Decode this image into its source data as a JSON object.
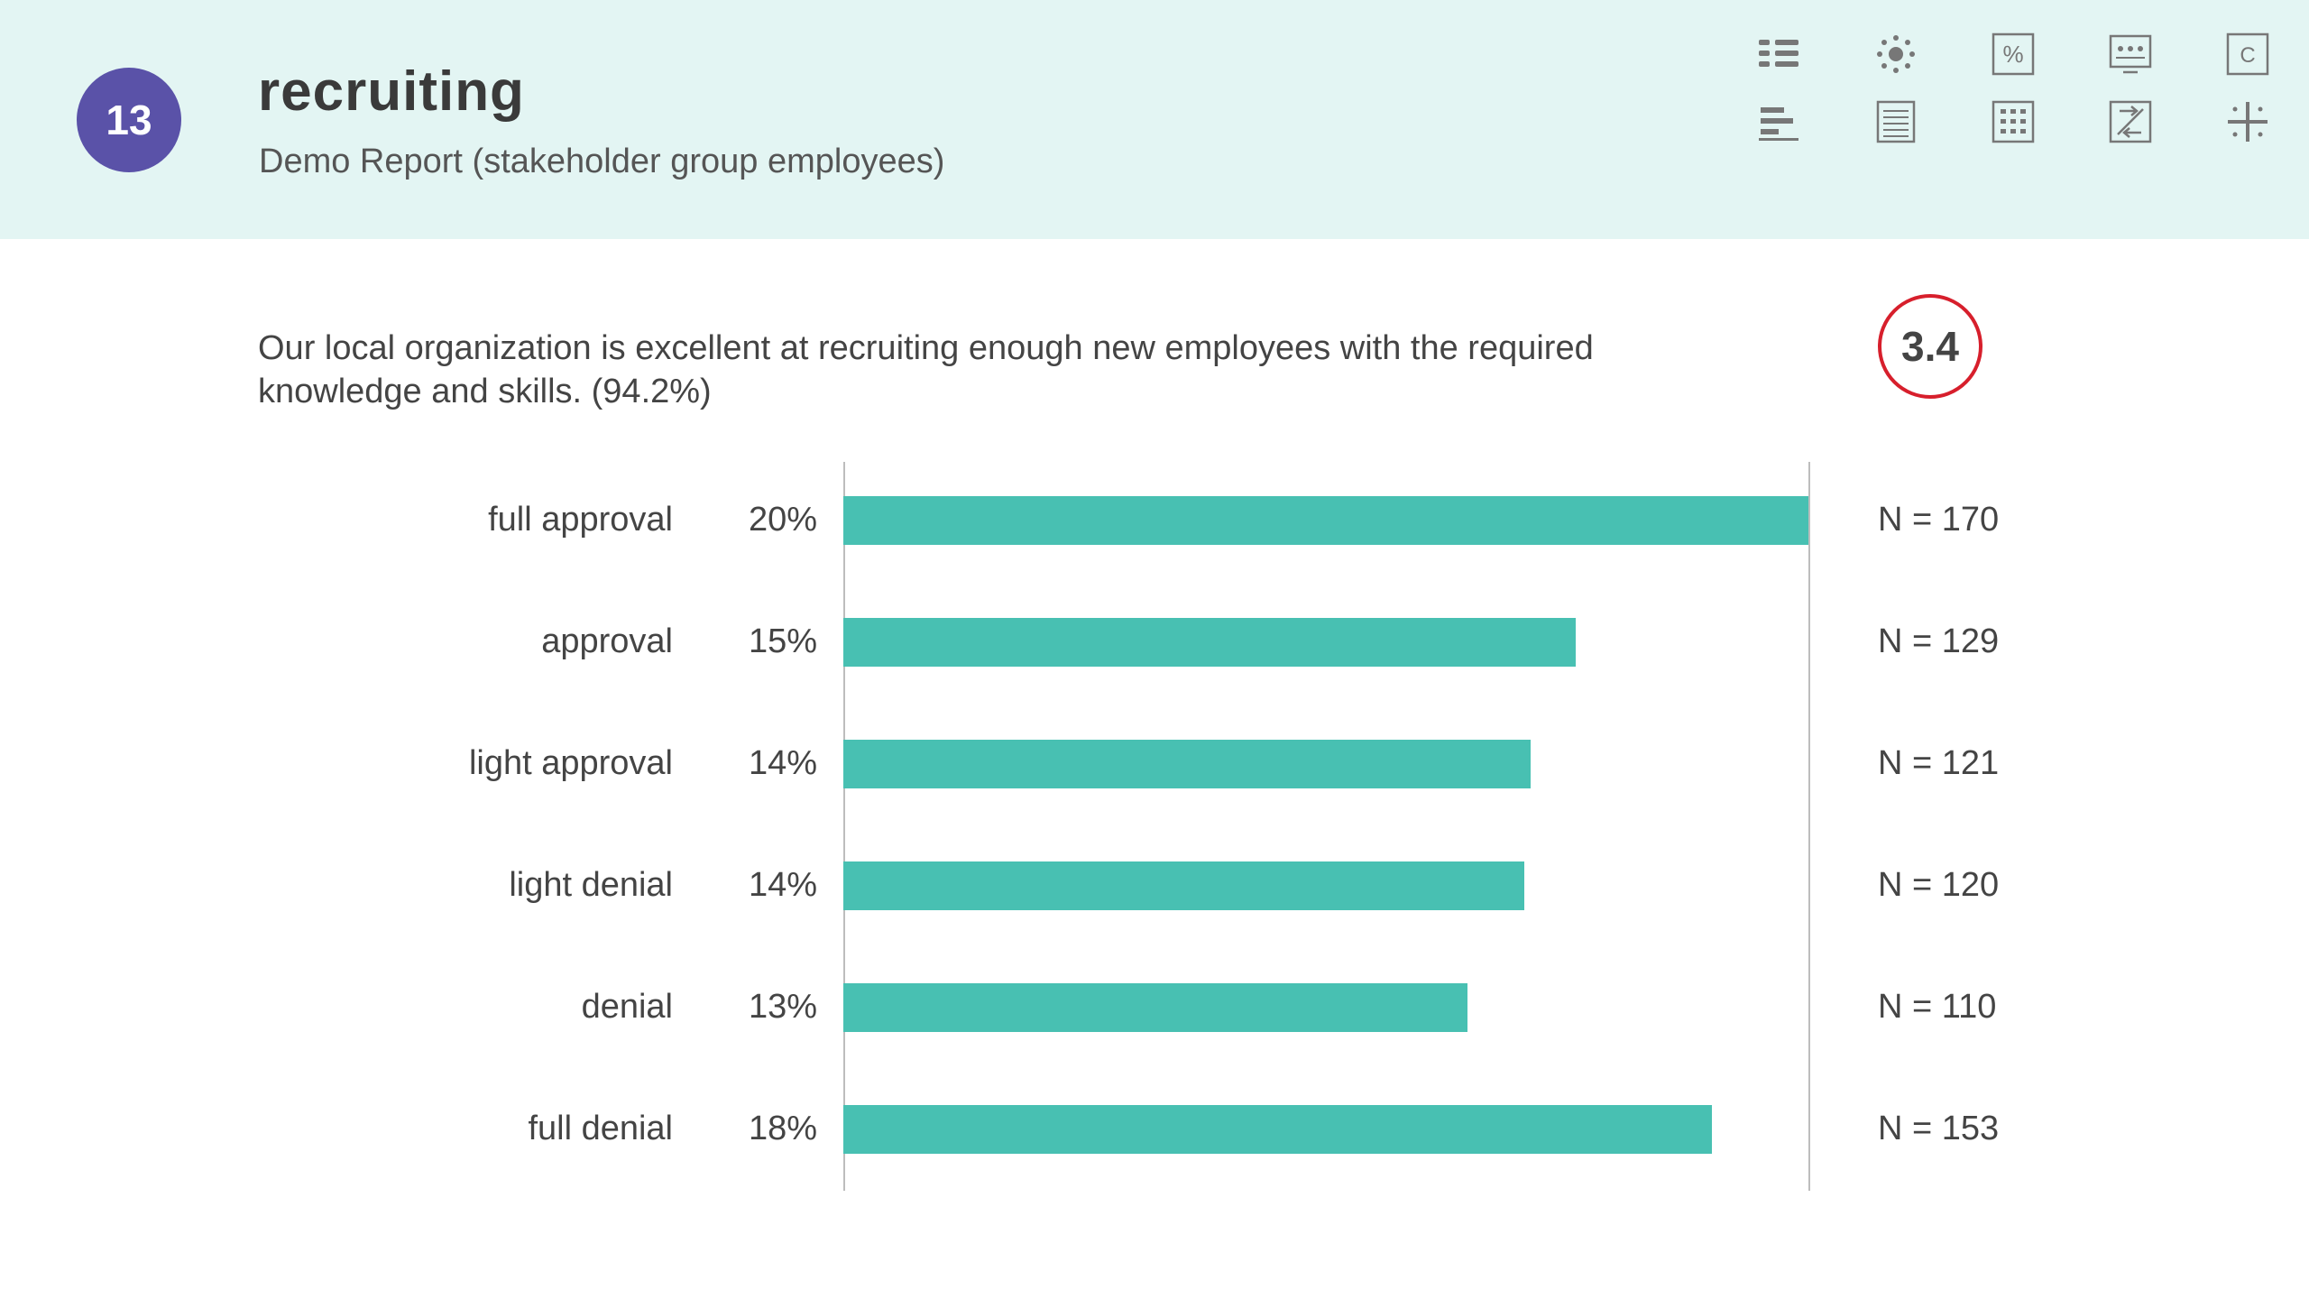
{
  "header": {
    "number": "13",
    "title": "recruiting",
    "subtitle": "Demo Report (stakeholder group employees)"
  },
  "toolbar": {
    "icons": [
      "list-view-icon",
      "brightness-icon",
      "percent-icon",
      "presentation-icon",
      "copyright-icon",
      "horizontal-bar-icon",
      "document-icon",
      "grid-table-icon",
      "swap-arrows-icon",
      "sparkle-icon"
    ],
    "percent_glyph": "%",
    "c_glyph": "C"
  },
  "question": {
    "text": "Our local organization is excellent at recruiting enough new employees with the required knowledge and skills. (94.2%)",
    "score": "3.4"
  },
  "colors": {
    "bar": "#48c0b2",
    "badge": "#5a52a8",
    "score_ring": "#d71f2c",
    "header_bg": "#e3f5f3"
  },
  "chart_data": {
    "type": "bar",
    "orientation": "horizontal",
    "categories": [
      "full approval",
      "approval",
      "light approval",
      "light denial",
      "denial",
      "full denial"
    ],
    "values": [
      20,
      15,
      14,
      14,
      13,
      18
    ],
    "value_labels": [
      "20%",
      "15%",
      "14%",
      "14%",
      "13%",
      "18%"
    ],
    "n_labels": [
      "N = 170",
      "N = 129",
      "N = 121",
      "N = 120",
      "N = 110",
      "N = 153"
    ],
    "n_values": [
      170,
      129,
      121,
      120,
      110,
      153
    ],
    "xlim": [
      0,
      170
    ],
    "grid": false
  }
}
